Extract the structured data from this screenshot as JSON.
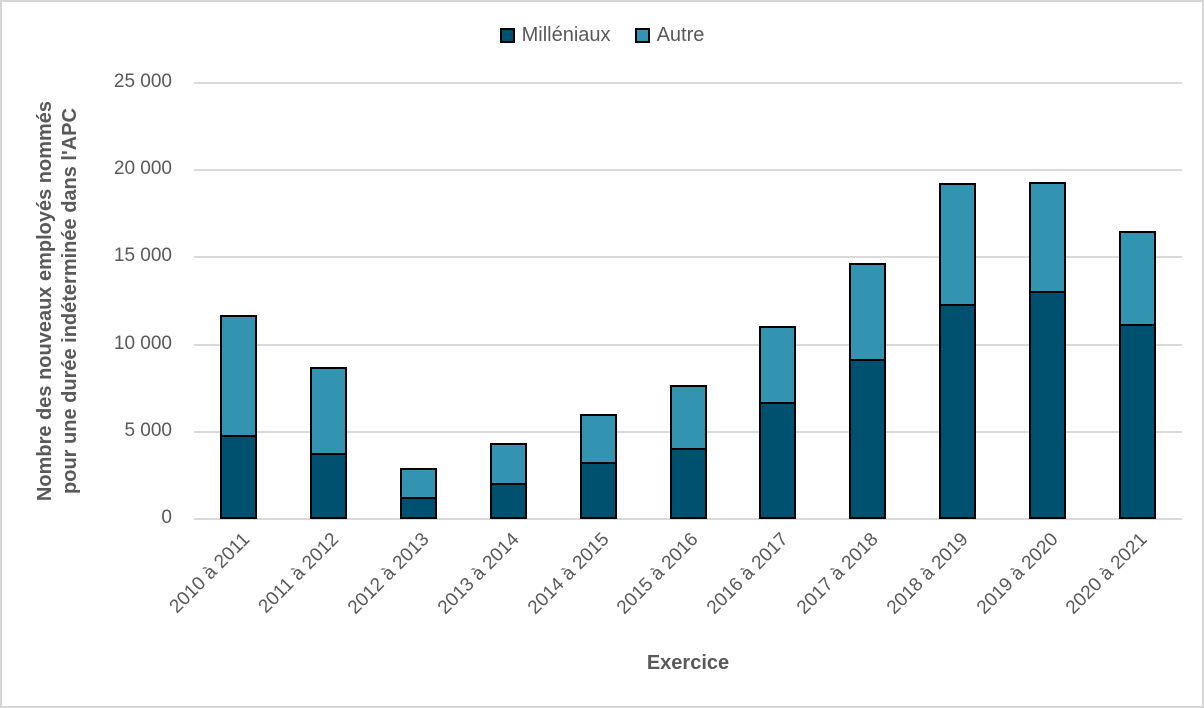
{
  "chart_data": {
    "type": "bar",
    "stacked": true,
    "title": "",
    "categories": [
      "2010 à 2011",
      "2011 à 2012",
      "2012 à 2013",
      "2013 à 2014",
      "2014 à 2015",
      "2015 à 2016",
      "2016 à 2017",
      "2017 à 2018",
      "2018 à 2019",
      "2019 à 2020",
      "2020 à 2021"
    ],
    "series": [
      {
        "name": "Milléniaux",
        "color": "#005070",
        "border_color": "#000000",
        "values": [
          4800,
          3800,
          1250,
          2050,
          3250,
          4100,
          6700,
          9150,
          12350,
          13100,
          11200
        ]
      },
      {
        "name": "Autre",
        "color": "#3394B2",
        "border_color": "#000000",
        "values": [
          6900,
          4900,
          1650,
          2300,
          2800,
          3600,
          4350,
          5550,
          6900,
          6200,
          5300
        ]
      }
    ],
    "totals": [
      11700,
      8700,
      2900,
      4350,
      6050,
      7700,
      11050,
      14700,
      19250,
      19300,
      16500
    ],
    "xlabel": "Exercice",
    "ylabel": "Nombre des nouveaux employés nommés pour une durée indéterminée dans l'APC",
    "ylabel_lines": [
      "Nombre des nouveaux employés nommés",
      "pour une durée indéterminée dans l'APC"
    ],
    "ylim": [
      0,
      25000
    ],
    "ytick_step": 5000,
    "ytick_labels": [
      "25 000",
      "20 000",
      "15 000",
      "10 000",
      "5 000",
      "0"
    ],
    "grid": true,
    "legend_position": "top"
  },
  "colors": {
    "milleniaux": "#005070",
    "autre": "#3394B2",
    "gridline": "#d9d9d9",
    "bar_border": "#000000",
    "text": "#595959",
    "frame_border": "#d6d6d6"
  }
}
